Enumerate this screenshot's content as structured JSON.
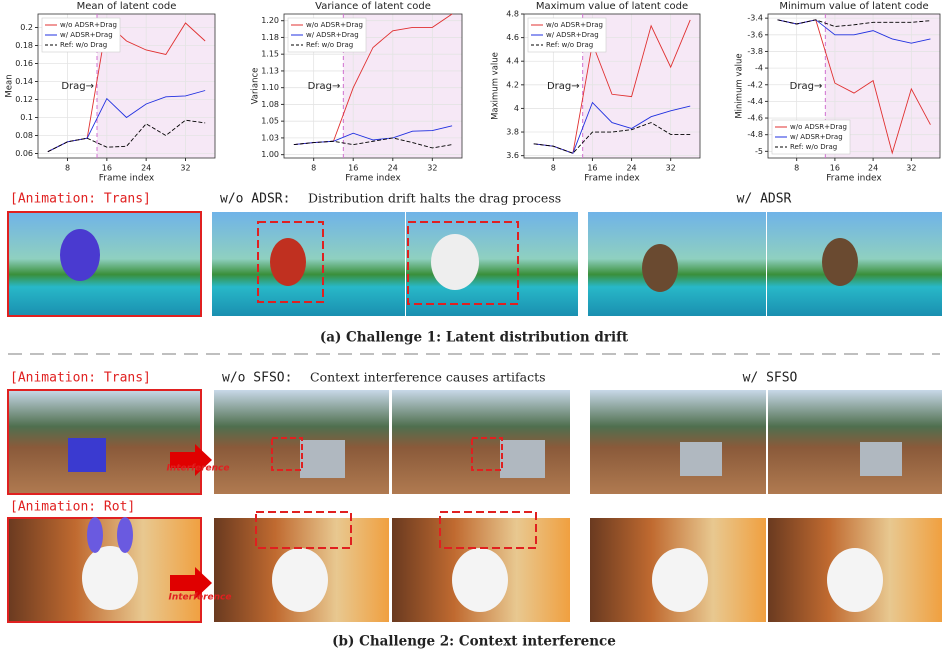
{
  "chart_data": [
    {
      "type": "line",
      "title": "Mean of latent code",
      "x_label": "Frame index",
      "y_label": "Mean",
      "x": [
        4,
        8,
        12,
        16,
        20,
        24,
        28,
        32,
        36
      ],
      "xlim": [
        2,
        38
      ],
      "xticks": [
        8,
        16,
        24,
        32
      ],
      "ylim": [
        0.055,
        0.215
      ],
      "yticks": [
        0.06,
        0.08,
        0.1,
        0.12,
        0.14,
        0.16,
        0.18,
        0.2
      ],
      "legend": "upper left",
      "annotation": {
        "text": "Drag→",
        "x": 14
      },
      "shade_color": "#f6e8f6",
      "series": [
        {
          "name": "w/o ADSR+Drag",
          "color": "#e03030",
          "style": "solid",
          "values": [
            0.062,
            0.073,
            0.077,
            0.205,
            0.185,
            0.175,
            0.17,
            0.205,
            0.185
          ]
        },
        {
          "name": "w/ ADSR+Drag",
          "color": "#2030e0",
          "style": "solid",
          "values": [
            0.062,
            0.073,
            0.077,
            0.121,
            0.1,
            0.115,
            0.123,
            0.124,
            0.13
          ]
        },
        {
          "name": "Ref: w/o Drag",
          "color": "#000000",
          "style": "dashed",
          "values": [
            0.062,
            0.073,
            0.077,
            0.067,
            0.068,
            0.093,
            0.08,
            0.097,
            0.094
          ]
        }
      ]
    },
    {
      "type": "line",
      "title": "Variance of latent code",
      "x_label": "Frame index",
      "y_label": "Variance",
      "x": [
        4,
        8,
        12,
        16,
        20,
        24,
        28,
        32,
        36
      ],
      "xlim": [
        2,
        38
      ],
      "xticks": [
        8,
        16,
        24,
        32
      ],
      "ylim": [
        0.995,
        1.21
      ],
      "yticks": [
        {
          "value": 1.0,
          "label": "1.00"
        },
        {
          "value": 1.025,
          "label": "1.03"
        },
        {
          "value": 1.05,
          "label": "1.05"
        },
        {
          "value": 1.075,
          "label": "1.08"
        },
        {
          "value": 1.1,
          "label": "1.10"
        },
        {
          "value": 1.125,
          "label": "1.13"
        },
        {
          "value": 1.15,
          "label": "1.15"
        },
        {
          "value": 1.175,
          "label": "1.18"
        },
        {
          "value": 1.2,
          "label": "1.20"
        }
      ],
      "legend": "upper left",
      "annotation": {
        "text": "Drag→",
        "x": 14
      },
      "shade_color": "#f6e8f6",
      "series": [
        {
          "name": "w/o ADSR+Drag",
          "color": "#e03030",
          "style": "solid",
          "values": [
            1.015,
            1.018,
            1.02,
            1.1,
            1.16,
            1.185,
            1.19,
            1.19,
            1.21
          ]
        },
        {
          "name": "w/ ADSR+Drag",
          "color": "#2030e0",
          "style": "solid",
          "values": [
            1.015,
            1.018,
            1.02,
            1.032,
            1.022,
            1.025,
            1.035,
            1.036,
            1.043
          ]
        },
        {
          "name": "Ref: w/o Drag",
          "color": "#000000",
          "style": "dashed",
          "values": [
            1.015,
            1.018,
            1.02,
            1.015,
            1.02,
            1.025,
            1.018,
            1.01,
            1.015
          ]
        }
      ]
    },
    {
      "type": "line",
      "title": "Maximum value of latent code",
      "x_label": "Frame index",
      "y_label": "Maximum value",
      "x": [
        4,
        8,
        12,
        16,
        20,
        24,
        28,
        32,
        36
      ],
      "xlim": [
        2,
        38
      ],
      "xticks": [
        8,
        16,
        24,
        32
      ],
      "ylim": [
        3.58,
        4.8
      ],
      "yticks": [
        3.6,
        3.8,
        4.0,
        4.2,
        4.4,
        4.6,
        4.8
      ],
      "legend": "upper left",
      "annotation": {
        "text": "Drag→",
        "x": 14
      },
      "shade_color": "#f6e8f6",
      "series": [
        {
          "name": "w/o ADSR+Drag",
          "color": "#e03030",
          "style": "solid",
          "values": [
            3.7,
            3.68,
            3.62,
            4.55,
            4.12,
            4.1,
            4.7,
            4.35,
            4.75
          ]
        },
        {
          "name": "w/ ADSR+Drag",
          "color": "#2030e0",
          "style": "solid",
          "values": [
            3.7,
            3.68,
            3.62,
            4.05,
            3.88,
            3.83,
            3.93,
            3.98,
            4.02
          ]
        },
        {
          "name": "Ref: w/o Drag",
          "color": "#000000",
          "style": "dashed",
          "values": [
            3.7,
            3.68,
            3.62,
            3.8,
            3.8,
            3.82,
            3.88,
            3.78,
            3.78
          ]
        }
      ]
    },
    {
      "type": "line",
      "title": "Minimum value of latent code",
      "x_label": "Frame index",
      "y_label": "Minimum value",
      "x": [
        4,
        8,
        12,
        16,
        20,
        24,
        28,
        32,
        36
      ],
      "xlim": [
        2,
        38
      ],
      "xticks": [
        8,
        16,
        24,
        32
      ],
      "ylim": [
        -5.08,
        -3.35
      ],
      "yticks": [
        -5.0,
        -4.8,
        -4.6,
        -4.4,
        -4.2,
        -4.0,
        -3.8,
        -3.6,
        -3.4
      ],
      "legend": "lower left",
      "annotation": {
        "text": "Drag→",
        "x": 14
      },
      "shade_color": "#f6e8f6",
      "series": [
        {
          "name": "w/o ADSR+Drag",
          "color": "#e03030",
          "style": "solid",
          "values": [
            -3.42,
            -3.47,
            -3.42,
            -4.18,
            -4.3,
            -4.15,
            -5.02,
            -4.25,
            -4.68
          ]
        },
        {
          "name": "w/ ADSR+Drag",
          "color": "#2030e0",
          "style": "solid",
          "values": [
            -3.42,
            -3.47,
            -3.42,
            -3.6,
            -3.6,
            -3.55,
            -3.65,
            -3.7,
            -3.65
          ]
        },
        {
          "name": "Ref: w/o Drag",
          "color": "#000000",
          "style": "dashed",
          "values": [
            -3.42,
            -3.47,
            -3.42,
            -3.5,
            -3.48,
            -3.45,
            -3.45,
            -3.45,
            -3.43
          ]
        }
      ]
    }
  ],
  "figure": {
    "panel_a": {
      "label": "[Animation: Trans]",
      "wo_heading": "w/o ADSR:",
      "wo_text": "Distribution drift halts the drag process",
      "w_heading": "w/ ADSR",
      "caption": "(a) Challenge 1: Latent distribution drift"
    },
    "panel_b": {
      "label_trans": "[Animation: Trans]",
      "label_rot": "[Animation: Rot]",
      "wo_heading": "w/o SFSO:",
      "wo_text": "Context interference causes artifacts",
      "w_heading": "w/ SFSO",
      "interference": "Interference",
      "caption": "(b) Challenge 2: Context interference"
    }
  }
}
